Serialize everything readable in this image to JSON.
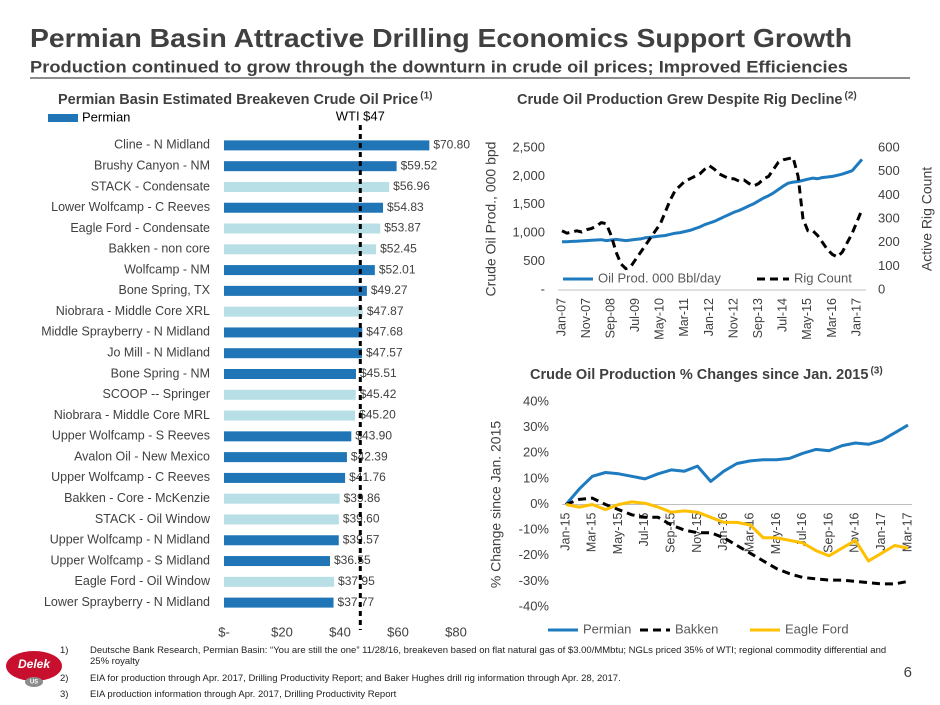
{
  "header": {
    "title": "Permian Basin Attractive Drilling Economics Support Growth",
    "subtitle": "Production continued to grow through the downturn in crude oil prices; Improved Efficiencies"
  },
  "chart_data": [
    {
      "type": "barh",
      "title": "Permian Basin Estimated Breakeven Crude Oil Price",
      "title_note": "(1)",
      "legend": {
        "name": "Permian",
        "color": "#1f75b5"
      },
      "categories": [
        "Cline - N Midland",
        "Brushy Canyon - NM",
        "STACK - Condensate",
        "Lower Wolfcamp - C Reeves",
        "Eagle Ford - Condensate",
        "Bakken - non core",
        "Wolfcamp - NM",
        "Bone Spring, TX",
        "Niobrara - Middle Core XRL",
        "Middle Sprayberry - N Midland",
        "Jo Mill - N Midland",
        "Bone Spring - NM",
        "SCOOP -- Springer",
        "Niobrara - Middle Core MRL",
        "Upper Wolfcamp - S Reeves",
        "Avalon Oil - New Mexico",
        "Upper Wolfcamp - C Reeves",
        "Bakken - Core - McKenzie",
        "STACK - Oil Window",
        "Upper Wolfcamp - N Midland",
        "Upper Wolfcamp - S Midland",
        "Eagle Ford  - Oil Window",
        "Lower Sprayberry - N Midland"
      ],
      "values": [
        70.8,
        59.52,
        56.96,
        54.83,
        53.87,
        52.45,
        52.01,
        49.27,
        47.87,
        47.68,
        47.57,
        45.51,
        45.42,
        45.2,
        43.9,
        42.39,
        41.76,
        39.86,
        39.6,
        39.57,
        36.55,
        37.95,
        37.77
      ],
      "value_labels": [
        "$70.80",
        "$59.52",
        "$56.96",
        "$54.83",
        "$53.87",
        "$52.45",
        "$52.01",
        "$49.27",
        "$47.87",
        "$47.68",
        "$47.57",
        "$45.51",
        "$45.42",
        "$45.20",
        "$43.90",
        "$42.39",
        "$41.76",
        "$39.86",
        "$39.60",
        "$39.57",
        "$36.55",
        "$37.95",
        "$37.77"
      ],
      "colors": [
        "#1f75b5",
        "#1f75b5",
        "#b7dfe5",
        "#1f75b5",
        "#b7dfe5",
        "#b7dfe5",
        "#1f75b5",
        "#1f75b5",
        "#b7dfe5",
        "#1f75b5",
        "#1f75b5",
        "#1f75b5",
        "#b7dfe5",
        "#b7dfe5",
        "#1f75b5",
        "#1f75b5",
        "#1f75b5",
        "#b7dfe5",
        "#b7dfe5",
        "#1f75b5",
        "#1f75b5",
        "#b7dfe5",
        "#1f75b5"
      ],
      "xlim": [
        0,
        80
      ],
      "xticks": [
        {
          "value": 0,
          "label": "$-"
        },
        {
          "value": 20,
          "label": "$20"
        },
        {
          "value": 40,
          "label": "$40"
        },
        {
          "value": 60,
          "label": "$60"
        },
        {
          "value": 80,
          "label": "$80"
        }
      ],
      "annotations": [
        {
          "text": "WTI $47",
          "value": 47
        }
      ]
    },
    {
      "type": "line",
      "title": "Crude Oil Production Grew Despite Rig Decline",
      "title_note": "(2)",
      "ylabel": "Crude Oil Prod., 000 bpd",
      "y2label": "Active Rig Count",
      "categories": [
        "Jan-07",
        null,
        null,
        null,
        null,
        "Nov-07",
        null,
        null,
        null,
        null,
        "Sep-08",
        null,
        null,
        null,
        null,
        "Jul-09",
        null,
        null,
        null,
        null,
        "May-10",
        null,
        null,
        null,
        null,
        "Mar-11",
        null,
        null,
        null,
        null,
        "Jan-12",
        null,
        null,
        null,
        null,
        "Nov-12",
        null,
        null,
        null,
        null,
        "Sep-13",
        null,
        null,
        null,
        null,
        "Jul-14",
        null,
        null,
        null,
        null,
        "May-15",
        null,
        null,
        null,
        null,
        "Mar-16",
        null,
        null,
        null,
        null,
        "Jan-17",
        null
      ],
      "series": [
        {
          "name": "Oil Prod. 000 Bbl/day",
          "color": "#1f7bbf",
          "style": "solid",
          "values": [
            850,
            850,
            855,
            860,
            865,
            870,
            875,
            880,
            885,
            870,
            880,
            890,
            880,
            870,
            880,
            890,
            900,
            920,
            930,
            940,
            950,
            960,
            980,
            1000,
            1010,
            1030,
            1050,
            1080,
            1110,
            1150,
            1180,
            1210,
            1250,
            1290,
            1330,
            1370,
            1400,
            1440,
            1480,
            1520,
            1570,
            1620,
            1660,
            1710,
            1770,
            1830,
            1880,
            1900,
            1910,
            1930,
            1950,
            1970,
            1960,
            1980,
            1990,
            2000,
            2020,
            2040,
            2070,
            2100,
            2200,
            2300
          ]
        },
        {
          "name": "Rig Count",
          "color": "#000000",
          "style": "dashed",
          "axis": "y2",
          "values": [
            250,
            240,
            245,
            250,
            245,
            255,
            260,
            270,
            285,
            280,
            230,
            160,
            110,
            90,
            100,
            130,
            160,
            190,
            220,
            250,
            280,
            330,
            380,
            420,
            440,
            460,
            470,
            480,
            490,
            510,
            525,
            510,
            490,
            480,
            470,
            470,
            460,
            465,
            450,
            440,
            450,
            470,
            480,
            510,
            540,
            550,
            555,
            560,
            480,
            300,
            250,
            250,
            230,
            200,
            170,
            150,
            140,
            160,
            200,
            240,
            290,
            340
          ]
        }
      ],
      "ylim": [
        0,
        2500
      ],
      "yticks": [
        {
          "value": 0,
          "label": "-"
        },
        500,
        {
          "value": 1000,
          "label": "1,000"
        },
        {
          "value": 1500,
          "label": "1,500"
        },
        {
          "value": 2000,
          "label": "2,000"
        },
        {
          "value": 2500,
          "label": "2,500"
        }
      ],
      "y2lim": [
        0,
        600
      ],
      "y2ticks": [
        0,
        100,
        200,
        300,
        400,
        500,
        600
      ],
      "legend": "bottom-inside"
    },
    {
      "type": "line",
      "title": "Crude Oil Production % Changes since Jan. 2015",
      "title_note": "(3)",
      "ylabel": "% Change since Jan. 2015",
      "categories": [
        "Jan-15",
        null,
        "Mar-15",
        null,
        "May-15",
        null,
        "Jul-15",
        null,
        "Sep-15",
        null,
        "Nov-15",
        null,
        "Jan-16",
        null,
        "Mar-16",
        null,
        "May-16",
        null,
        "Jul-16",
        null,
        "Sep-16",
        null,
        "Nov-16",
        null,
        "Jan-17",
        null,
        "Mar-17"
      ],
      "series": [
        {
          "name": "Permian",
          "color": "#1f7bbf",
          "style": "solid",
          "values": [
            0,
            6,
            11,
            12.5,
            12,
            11,
            10,
            12,
            13.5,
            13,
            15,
            9,
            13,
            16,
            17,
            17.5,
            17.5,
            18,
            20,
            21.5,
            21,
            23,
            24,
            23.5,
            25,
            28,
            31
          ]
        },
        {
          "name": "Bakken",
          "color": "#000000",
          "style": "dashed",
          "values": [
            0,
            2,
            2.5,
            0,
            -2,
            -4,
            -5,
            -5,
            -8,
            -10,
            -11,
            -11,
            -13,
            -16,
            -19,
            -22,
            -25,
            -27,
            -28.5,
            -29,
            -29.5,
            -29.5,
            -30,
            -30.5,
            -31,
            -31,
            -30
          ]
        },
        {
          "name": "Eagle Ford",
          "color": "#ffc000",
          "style": "solid",
          "values": [
            0,
            -1,
            0,
            -2,
            0,
            1,
            0.5,
            -1,
            -3,
            -2.5,
            -3,
            -5,
            -7,
            -7,
            -8,
            -13,
            -13,
            -14,
            -15,
            -18,
            -20,
            -17,
            -14,
            -22,
            -19,
            -16,
            -17
          ]
        }
      ],
      "ylim": [
        -40,
        40
      ],
      "yticks": [
        {
          "value": -40,
          "label": "-40%"
        },
        {
          "value": -30,
          "label": "-30%"
        },
        {
          "value": -20,
          "label": "-20%"
        },
        {
          "value": -10,
          "label": "-10%"
        },
        {
          "value": 0,
          "label": "0%"
        },
        {
          "value": 10,
          "label": "10%"
        },
        {
          "value": 20,
          "label": "20%"
        },
        {
          "value": 30,
          "label": "30%"
        },
        {
          "value": 40,
          "label": "40%"
        }
      ],
      "legend": "bottom"
    }
  ],
  "footnotes": [
    {
      "marker": "1)",
      "text": "Deutsche Bank Research, Permian Basin: “You are still the one” 11/28/16, breakeven based on flat natural gas of $3.00/MMbtu; NGLs priced 35% of WTI; regional commodity differential and 25% royalty"
    },
    {
      "marker": "2)",
      "text": "EIA for production through Apr. 2017, Drilling Productivity Report; and Baker Hughes drill rig information through Apr. 28, 2017."
    },
    {
      "marker": "3)",
      "text": "EIA production information through Apr. 2017, Drilling Productivity Report"
    }
  ],
  "page_number": "6",
  "logo": {
    "name": "Delek",
    "sub": "US"
  }
}
